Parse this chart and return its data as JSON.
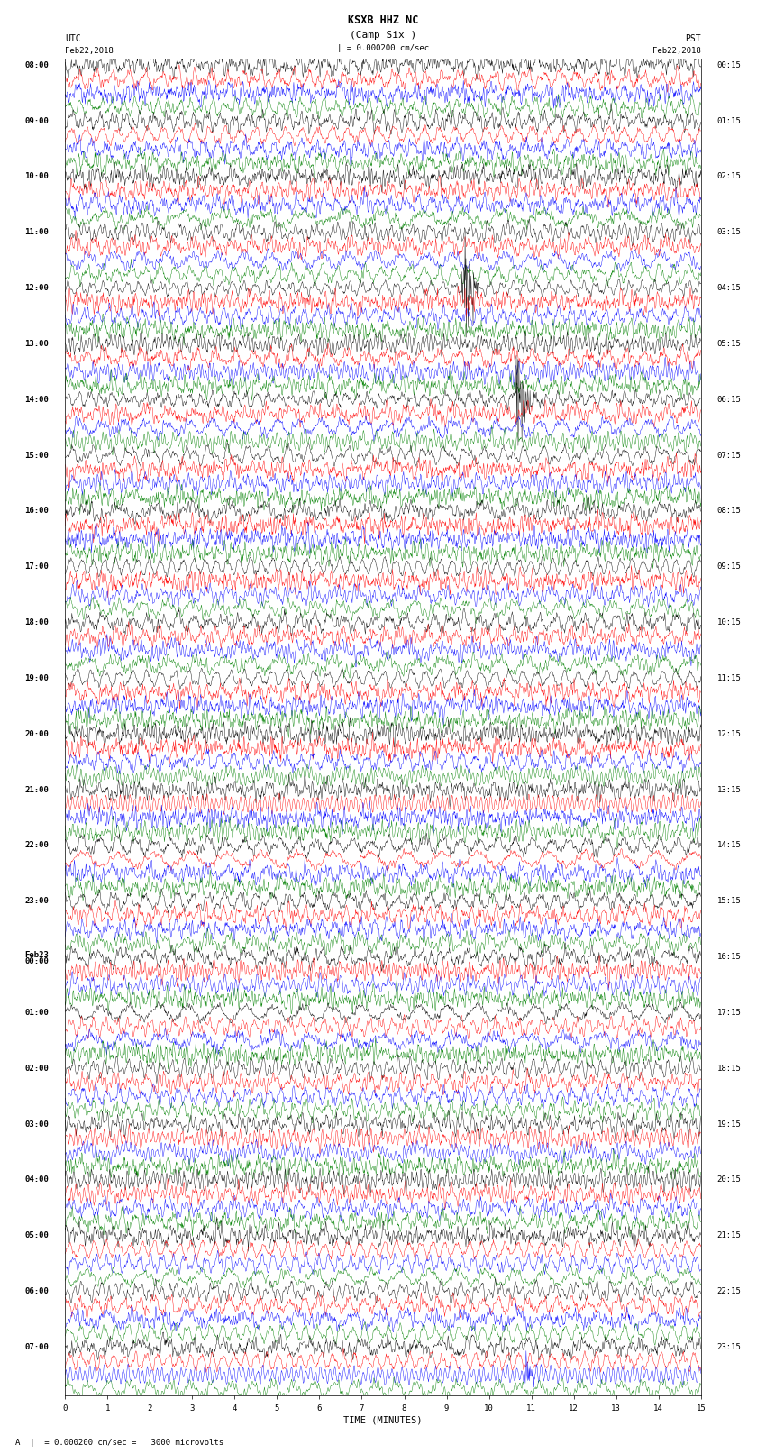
{
  "title_line1": "KSXB HHZ NC",
  "title_line2": "(Camp Six )",
  "scale_text": "| = 0.000200 cm/sec",
  "bottom_annotation": "A  |  = 0.000200 cm/sec =   3000 microvolts",
  "left_label_top": "UTC",
  "left_label_date": "Feb22,2018",
  "right_label_top": "PST",
  "right_label_date": "Feb22,2018",
  "xlabel": "TIME (MINUTES)",
  "bg_color": "#ffffff",
  "plot_bg": "#ffffff",
  "colors": [
    "#000000",
    "#ff0000",
    "#0000ff",
    "#008000"
  ],
  "left_times": [
    "08:00",
    "09:00",
    "10:00",
    "11:00",
    "12:00",
    "13:00",
    "14:00",
    "15:00",
    "16:00",
    "17:00",
    "18:00",
    "19:00",
    "20:00",
    "21:00",
    "22:00",
    "23:00",
    "Feb23\n00:00",
    "01:00",
    "02:00",
    "03:00",
    "04:00",
    "05:00",
    "06:00",
    "07:00"
  ],
  "right_times": [
    "00:15",
    "01:15",
    "02:15",
    "03:15",
    "04:15",
    "05:15",
    "06:15",
    "07:15",
    "08:15",
    "09:15",
    "10:15",
    "11:15",
    "12:15",
    "13:15",
    "14:15",
    "15:15",
    "16:15",
    "17:15",
    "18:15",
    "19:15",
    "20:15",
    "21:15",
    "22:15",
    "23:15"
  ],
  "n_hours": 24,
  "n_traces_per_hour": 4,
  "x_min": 0,
  "x_max": 15,
  "x_ticks": [
    0,
    1,
    2,
    3,
    4,
    5,
    6,
    7,
    8,
    9,
    10,
    11,
    12,
    13,
    14,
    15
  ],
  "seed": 42,
  "amplitude_scale": 0.35,
  "title_fontsize": 8.5,
  "label_fontsize": 7,
  "tick_fontsize": 6.5,
  "event_prob": 0.06,
  "n_pts": 1500
}
